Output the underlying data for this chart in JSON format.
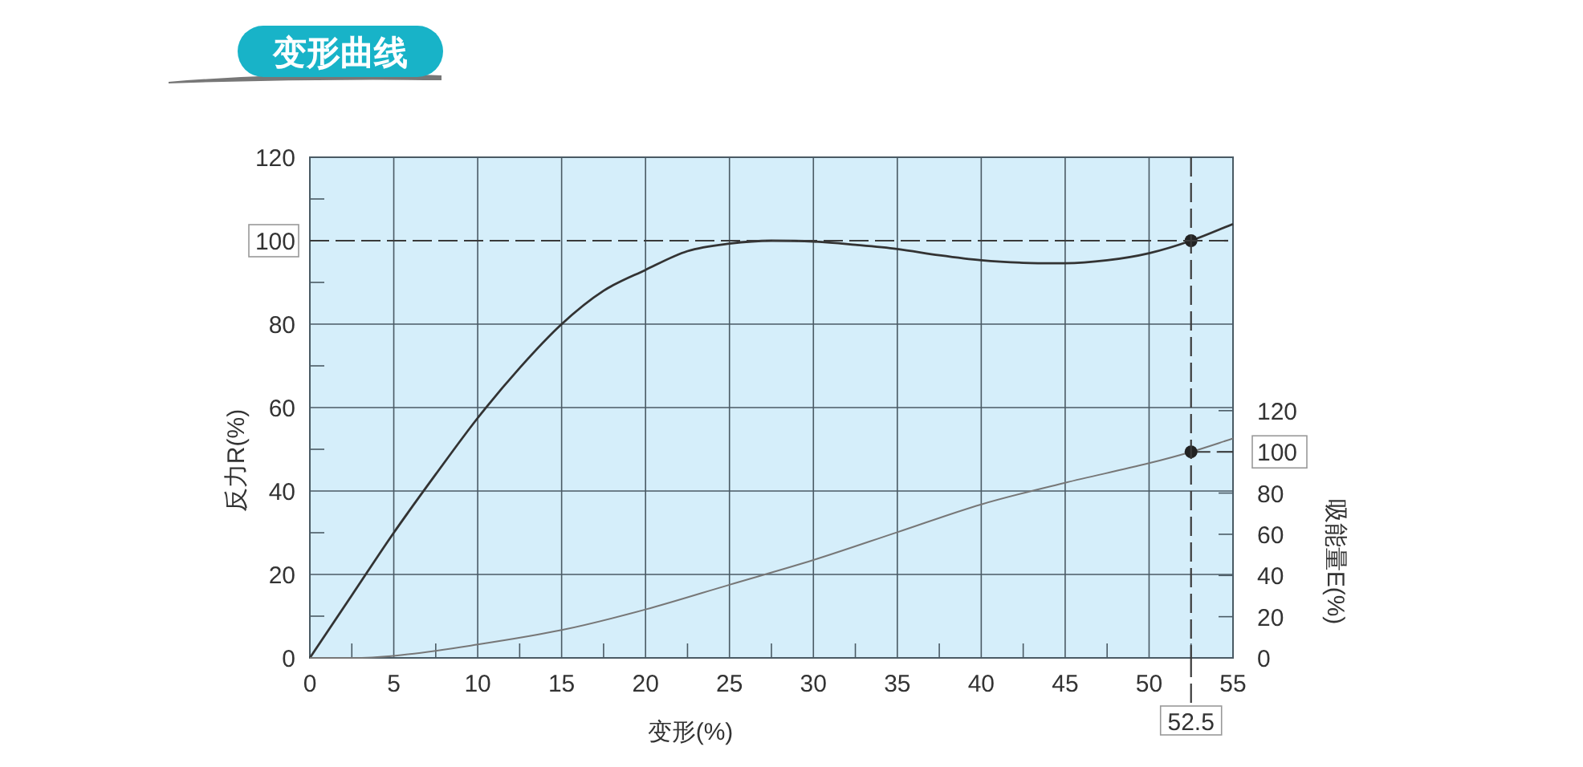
{
  "chart_data": {
    "type": "line",
    "title": "变形曲线",
    "xlabel": "变形(%)",
    "ylabel": "反力R(%)",
    "y2label": "吸能量E(%)",
    "xlim": [
      0,
      55
    ],
    "xticks": [
      0,
      {
        "value": 2.5,
        "label": null
      },
      5,
      {
        "value": 7.5,
        "label": null
      },
      10,
      {
        "value": 12.5,
        "label": null
      },
      15,
      {
        "value": 17.5,
        "label": null
      },
      20,
      {
        "value": 22.5,
        "label": null
      },
      25,
      {
        "value": 27.5,
        "label": null
      },
      30,
      {
        "value": 32.5,
        "label": null
      },
      35,
      {
        "value": 37.5,
        "label": null
      },
      40,
      {
        "value": 42.5,
        "label": null
      },
      45,
      {
        "value": 47.5,
        "label": null
      },
      50,
      {
        "value": 52.5,
        "label": null
      },
      55
    ],
    "ylim": [
      0,
      120
    ],
    "yticks": [
      0,
      {
        "value": 10,
        "label": null
      },
      20,
      {
        "value": 30,
        "label": null
      },
      40,
      {
        "value": 50,
        "label": null
      },
      60,
      {
        "value": 70,
        "label": null
      },
      80,
      {
        "value": 90,
        "label": null
      },
      100,
      {
        "value": 110,
        "label": null
      },
      120
    ],
    "y2lim": [
      0,
      243
    ],
    "y2ticks": [
      0,
      20,
      40,
      60,
      80,
      100,
      120
    ],
    "grid": true,
    "series": [
      {
        "color": "#333333",
        "x": [
          0,
          2.5,
          5,
          7.5,
          10,
          12.5,
          15,
          17.5,
          20,
          22.5,
          25,
          27.5,
          30,
          32.5,
          35,
          37.5,
          40,
          42.5,
          45,
          47.5,
          50,
          52.5,
          55
        ],
        "values": [
          0,
          15,
          30,
          44,
          57.5,
          69.5,
          80,
          88,
          93,
          97.5,
          99.3,
          100,
          99.8,
          99,
          98,
          96.5,
          95.3,
          94.7,
          94.6,
          95.3,
          97,
          100,
          104
        ]
      },
      {
        "color": "#777777",
        "axis": "y2",
        "x": [
          0,
          2.5,
          5,
          10,
          15,
          20,
          25,
          30,
          35,
          40,
          45,
          50,
          52.5,
          55
        ],
        "values": [
          0,
          0,
          1,
          6.5,
          13.5,
          23.5,
          35.5,
          47.5,
          61,
          74.5,
          85,
          94.5,
          100,
          106.5
        ]
      },
      {
        "color": "#3a3a3a",
        "axis": "y2",
        "line_style": "dashed",
        "x": [
          52.5,
          55
        ],
        "values": [
          100,
          100
        ]
      },
      {
        "type": "scatter",
        "marker": "circle",
        "color": "#222222",
        "x": [
          52.5
        ],
        "values": [
          100
        ]
      },
      {
        "type": "scatter",
        "marker": "circle",
        "color": "#222222",
        "axis": "y2",
        "x": [
          52.5
        ],
        "values": [
          100
        ]
      }
    ],
    "ref_lines": [
      {
        "axis": "y",
        "value": 100,
        "line_style": "dashed"
      },
      {
        "axis": "x",
        "value": 52.5,
        "label": "52.5",
        "line_style": "dashed"
      }
    ]
  }
}
